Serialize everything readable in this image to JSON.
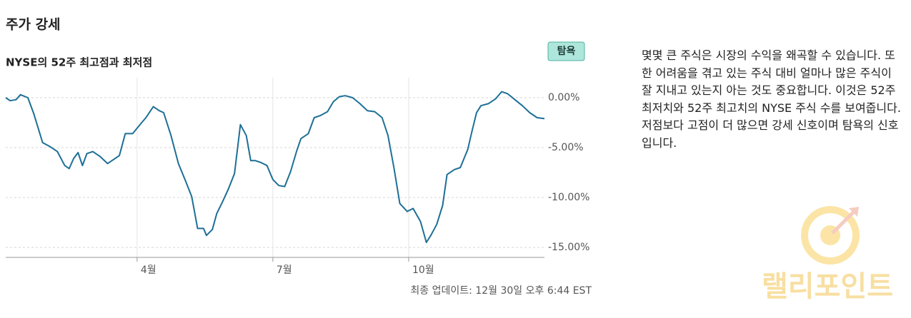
{
  "chart_data": {
    "type": "line",
    "title": "주가 강세",
    "subtitle": "NYSE의 52주 최고점과 최저점",
    "badge": "탐욕",
    "description": "몇몇 큰 주식은 시장의 수익을 왜곡할 수 있습니다. 또한 어려움을 겪고 있는 주식 대비 얼마나 많은 주식이 잘 지내고 있는지 아는 것도 중요합니다. 이것은 52주 최저치와 52주 최고치의 NYSE 주식 수를 보여줍니다. 저점보다 고점이 더 많으면 강세 신호이며 탐욕의 신호입니다.",
    "footnote": "최종 업데이트: 12월 30일 오후 6:44 EST",
    "watermark": "랠리포인트",
    "series": [
      {
        "name": "NYSE",
        "color": "#1d6f96",
        "x": [
          0,
          3,
          7,
          10,
          15,
          19,
          25,
          30,
          35,
          40,
          43,
          46,
          49,
          52,
          55,
          59,
          64,
          69,
          73,
          77,
          81,
          86,
          91,
          95,
          100,
          104,
          107,
          112,
          117,
          122,
          126,
          130,
          134,
          136,
          140,
          143,
          147,
          151,
          155,
          159,
          163,
          166,
          169,
          173,
          177,
          181,
          185,
          189,
          193,
          197,
          200,
          205,
          209,
          213,
          218,
          222,
          226,
          230,
          235,
          240,
          245,
          250,
          255,
          259,
          263,
          267,
          272,
          276,
          281,
          285,
          288,
          292,
          296,
          299,
          304,
          308,
          313,
          316,
          319,
          322,
          327,
          332,
          336,
          340,
          345,
          350,
          355,
          360,
          365
        ],
        "values": [
          0,
          -0.3,
          -0.2,
          0.3,
          0,
          -1.6,
          -4.5,
          -4.9,
          -5.4,
          -6.8,
          -7.1,
          -6.1,
          -5.5,
          -6.8,
          -5.6,
          -5.4,
          -5.9,
          -6.6,
          -6.2,
          -5.8,
          -3.6,
          -3.6,
          -2.7,
          -2.0,
          -0.9,
          -1.3,
          -1.5,
          -3.8,
          -6.6,
          -8.4,
          -9.9,
          -13.1,
          -13.1,
          -13.8,
          -13.2,
          -11.6,
          -10.4,
          -9.1,
          -7.6,
          -2.7,
          -3.8,
          -6.3,
          -6.3,
          -6.5,
          -6.8,
          -8.2,
          -8.8,
          -8.9,
          -7.4,
          -5.4,
          -4.1,
          -3.6,
          -2.0,
          -1.8,
          -1.4,
          -0.4,
          0.1,
          0.2,
          0,
          -0.6,
          -1.3,
          -1.4,
          -2.0,
          -3.8,
          -7.0,
          -10.6,
          -11.4,
          -11.1,
          -12.4,
          -14.5,
          -13.8,
          -12.7,
          -10.8,
          -7.7,
          -7.2,
          -7.0,
          -5.2,
          -3.3,
          -1.5,
          -0.8,
          -0.6,
          -0.1,
          0.6,
          0.4,
          -0.2,
          -0.8,
          -1.5,
          -2.0,
          -2.1
        ]
      }
    ],
    "xlim": [
      0,
      365
    ],
    "xticks": [
      {
        "value": 89,
        "label": "4월"
      },
      {
        "value": 181,
        "label": "7월"
      },
      {
        "value": 273,
        "label": "10월"
      }
    ],
    "ylim": [
      -16,
      2
    ],
    "yticks": [
      {
        "value": 0,
        "label": "0.00%"
      },
      {
        "value": -5,
        "label": "-5.00%"
      },
      {
        "value": -10,
        "label": "-10.00%"
      },
      {
        "value": -15,
        "label": "-15.00%"
      }
    ],
    "grid": true
  }
}
